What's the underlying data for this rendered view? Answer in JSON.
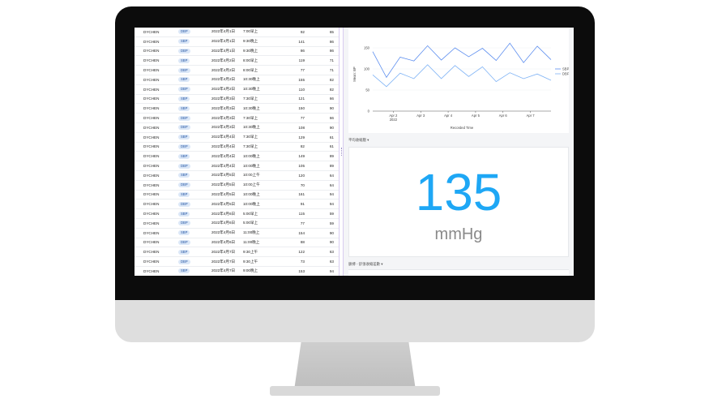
{
  "table": {
    "rows": [
      {
        "user": "DYCHEN",
        "type": "DBP",
        "date": "2022年4月1日",
        "time": "7:00早上",
        "v1": "92",
        "v2": "65"
      },
      {
        "user": "DYCHEN",
        "type": "SBP",
        "date": "2022年4月1日",
        "time": "9:30晚上",
        "v1": "141",
        "v2": "86"
      },
      {
        "user": "DYCHEN",
        "type": "DBP",
        "date": "2022年4月1日",
        "time": "9:30晚上",
        "v1": "86",
        "v2": "86"
      },
      {
        "user": "DYCHEN",
        "type": "SBP",
        "date": "2022年4月2日",
        "time": "8:00早上",
        "v1": "119",
        "v2": "71"
      },
      {
        "user": "DYCHEN",
        "type": "DBP",
        "date": "2022年4月2日",
        "time": "8:00早上",
        "v1": "77",
        "v2": "71"
      },
      {
        "user": "DYCHEN",
        "type": "SBP",
        "date": "2022年4月2日",
        "time": "10:30晚上",
        "v1": "155",
        "v2": "82"
      },
      {
        "user": "DYCHEN",
        "type": "DBP",
        "date": "2022年4月2日",
        "time": "10:30晚上",
        "v1": "110",
        "v2": "82"
      },
      {
        "user": "DYCHEN",
        "type": "SBP",
        "date": "2022年4月3日",
        "time": "7:30早上",
        "v1": "121",
        "v2": "66"
      },
      {
        "user": "DYCHEN",
        "type": "SBP",
        "date": "2022年4月3日",
        "time": "10:30晚上",
        "v1": "150",
        "v2": "90"
      },
      {
        "user": "DYCHEN",
        "type": "DBP",
        "date": "2022年4月3日",
        "time": "7:30早上",
        "v1": "77",
        "v2": "66"
      },
      {
        "user": "DYCHEN",
        "type": "DBP",
        "date": "2022年4月3日",
        "time": "10:30晚上",
        "v1": "108",
        "v2": "90"
      },
      {
        "user": "DYCHEN",
        "type": "SBP",
        "date": "2022年4月4日",
        "time": "7:30早上",
        "v1": "129",
        "v2": "61"
      },
      {
        "user": "DYCHEN",
        "type": "DBP",
        "date": "2022年4月4日",
        "time": "7:30早上",
        "v1": "82",
        "v2": "61"
      },
      {
        "user": "DYCHEN",
        "type": "SBP",
        "date": "2022年4月4日",
        "time": "10:00晚上",
        "v1": "149",
        "v2": "89"
      },
      {
        "user": "DYCHEN",
        "type": "DBP",
        "date": "2022年4月4日",
        "time": "10:00晚上",
        "v1": "105",
        "v2": "89"
      },
      {
        "user": "DYCHEN",
        "type": "SBP",
        "date": "2022年4月5日",
        "time": "10:00上午",
        "v1": "120",
        "v2": "64"
      },
      {
        "user": "DYCHEN",
        "type": "DBP",
        "date": "2022年4月5日",
        "time": "10:00上午",
        "v1": "70",
        "v2": "64"
      },
      {
        "user": "DYCHEN",
        "type": "SBP",
        "date": "2022年4月5日",
        "time": "10:00晚上",
        "v1": "161",
        "v2": "94"
      },
      {
        "user": "DYCHEN",
        "type": "DBP",
        "date": "2022年4月5日",
        "time": "10:00晚上",
        "v1": "91",
        "v2": "94"
      },
      {
        "user": "DYCHEN",
        "type": "SBP",
        "date": "2022年4月6日",
        "time": "5:00早上",
        "v1": "115",
        "v2": "59"
      },
      {
        "user": "DYCHEN",
        "type": "DBP",
        "date": "2022年4月6日",
        "time": "5:00早上",
        "v1": "77",
        "v2": "59"
      },
      {
        "user": "DYCHEN",
        "type": "SBP",
        "date": "2022年4月6日",
        "time": "11:00晚上",
        "v1": "154",
        "v2": "90"
      },
      {
        "user": "DYCHEN",
        "type": "DBP",
        "date": "2022年4月6日",
        "time": "11:00晚上",
        "v1": "88",
        "v2": "90"
      },
      {
        "user": "DYCHEN",
        "type": "SBP",
        "date": "2022年4月7日",
        "time": "9:30上午",
        "v1": "122",
        "v2": "63"
      },
      {
        "user": "DYCHEN",
        "type": "DBP",
        "date": "2022年4月7日",
        "time": "9:30上午",
        "v1": "73",
        "v2": "63"
      },
      {
        "user": "DYCHEN",
        "type": "SBP",
        "date": "2022年4月7日",
        "time": "9:00晚上",
        "v1": "153",
        "v2": "94"
      }
    ]
  },
  "chart_data": {
    "type": "line",
    "xlabel": "Recorded Time",
    "ylabel": "Mean: BP",
    "ylim": [
      0,
      175
    ],
    "yticks": [
      "150",
      "100",
      "50",
      "0"
    ],
    "x": [
      "Apr 1 a",
      "Apr 1 b",
      "Apr 2 a",
      "Apr 2 b",
      "Apr 3 a",
      "Apr 3 b",
      "Apr 4 a",
      "Apr 4 b",
      "Apr 5 a",
      "Apr 5 b",
      "Apr 6 a",
      "Apr 6 b",
      "Apr 7 a",
      "Apr 7 b"
    ],
    "xtick_labels": [
      "Apr 2",
      "Apr 3",
      "Apr 4",
      "Apr 5",
      "Apr 6",
      "Apr 7"
    ],
    "xtick_sublabel": "2022",
    "series": [
      {
        "name": "SBP",
        "color": "#5b8def",
        "values": [
          141,
          80,
          128,
          119,
          155,
          121,
          150,
          129,
          149,
          120,
          161,
          115,
          154,
          122
        ]
      },
      {
        "name": "DBP",
        "color": "#7fb3f5",
        "values": [
          86,
          58,
          90,
          77,
          110,
          77,
          108,
          82,
          105,
          70,
          91,
          77,
          88,
          73
        ]
      }
    ]
  },
  "metric": {
    "section_title": "平均收縮壓 ▾",
    "value": "135",
    "unit": "mmHg"
  },
  "bottom_section": {
    "title": "脈搏 - 舒張收縮差數 ▾"
  },
  "colors": {
    "accent": "#1ea7f5",
    "badge_bg": "#dbe7f7"
  }
}
